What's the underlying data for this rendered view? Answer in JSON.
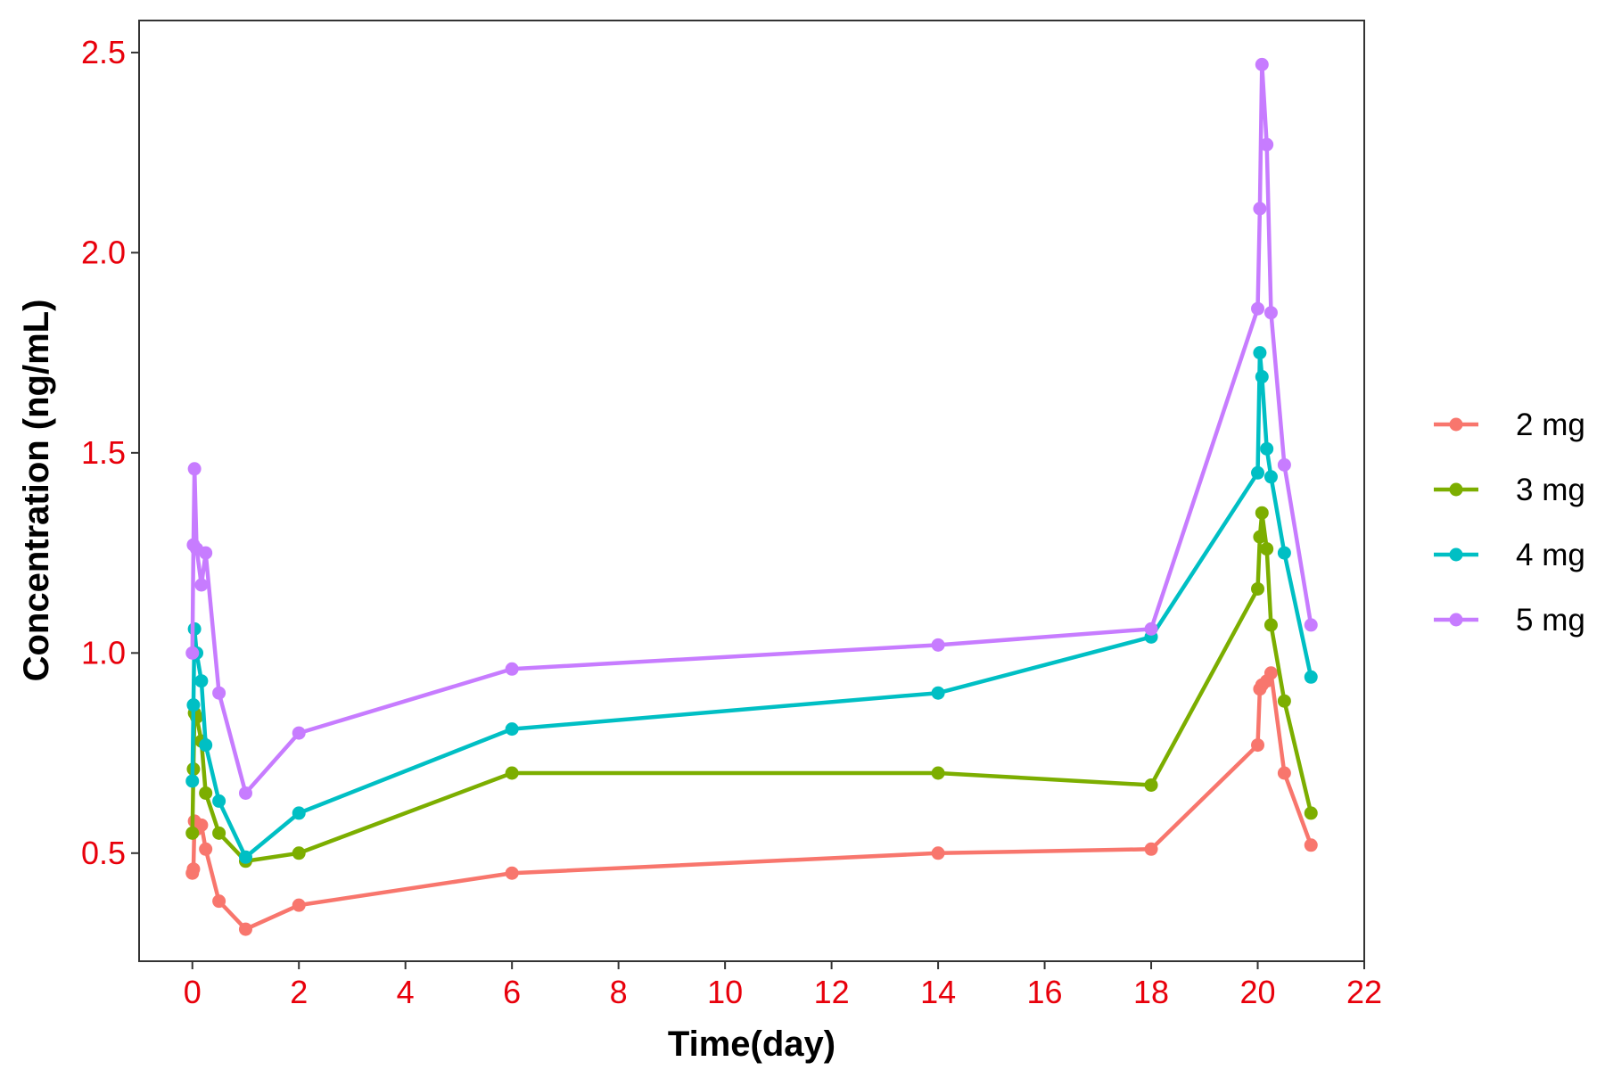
{
  "chart_data": {
    "type": "line",
    "xlabel": "Time(day)",
    "ylabel": "Concentration (ng/mL)",
    "xlim": [
      -1.0,
      22.0
    ],
    "ylim": [
      0.23,
      2.58
    ],
    "xticks": [
      0,
      2,
      4,
      6,
      8,
      10,
      12,
      14,
      16,
      18,
      20,
      22
    ],
    "xtick_labels": [
      "0",
      "2",
      "4",
      "6",
      "8",
      "10",
      "12",
      "14",
      "16",
      "18",
      "20",
      "22"
    ],
    "yticks": [
      0.5,
      1.0,
      1.5,
      2.0,
      2.5
    ],
    "ytick_labels": [
      "0.5",
      "1.0",
      "1.5",
      "2.0",
      "2.5"
    ],
    "tick_label_color": "#e8000b",
    "grid": false,
    "legend_position": "right",
    "series": [
      {
        "name": "2 mg",
        "color": "#f8766d",
        "points": [
          [
            0.0,
            0.45
          ],
          [
            0.02,
            0.46
          ],
          [
            0.04,
            0.58
          ],
          [
            0.08,
            0.56
          ],
          [
            0.17,
            0.57
          ],
          [
            0.25,
            0.51
          ],
          [
            0.5,
            0.38
          ],
          [
            1.0,
            0.31
          ],
          [
            2.0,
            0.37
          ],
          [
            6.0,
            0.45
          ],
          [
            14.0,
            0.5
          ],
          [
            18.0,
            0.51
          ],
          [
            20.0,
            0.77
          ],
          [
            20.04,
            0.91
          ],
          [
            20.08,
            0.92
          ],
          [
            20.17,
            0.93
          ],
          [
            20.25,
            0.95
          ],
          [
            20.5,
            0.7
          ],
          [
            21.0,
            0.52
          ]
        ]
      },
      {
        "name": "3 mg",
        "color": "#7cae00",
        "points": [
          [
            0.0,
            0.55
          ],
          [
            0.02,
            0.71
          ],
          [
            0.04,
            0.85
          ],
          [
            0.08,
            0.84
          ],
          [
            0.17,
            0.78
          ],
          [
            0.25,
            0.65
          ],
          [
            0.5,
            0.55
          ],
          [
            1.0,
            0.48
          ],
          [
            2.0,
            0.5
          ],
          [
            6.0,
            0.7
          ],
          [
            14.0,
            0.7
          ],
          [
            18.0,
            0.67
          ],
          [
            20.0,
            1.16
          ],
          [
            20.04,
            1.29
          ],
          [
            20.08,
            1.35
          ],
          [
            20.17,
            1.26
          ],
          [
            20.25,
            1.07
          ],
          [
            20.5,
            0.88
          ],
          [
            21.0,
            0.6
          ]
        ]
      },
      {
        "name": "4 mg",
        "color": "#00bfc4",
        "points": [
          [
            0.0,
            0.68
          ],
          [
            0.02,
            0.87
          ],
          [
            0.04,
            1.06
          ],
          [
            0.08,
            1.0
          ],
          [
            0.17,
            0.93
          ],
          [
            0.25,
            0.77
          ],
          [
            0.5,
            0.63
          ],
          [
            1.0,
            0.49
          ],
          [
            2.0,
            0.6
          ],
          [
            6.0,
            0.81
          ],
          [
            14.0,
            0.9
          ],
          [
            18.0,
            1.04
          ],
          [
            20.0,
            1.45
          ],
          [
            20.04,
            1.75
          ],
          [
            20.08,
            1.69
          ],
          [
            20.17,
            1.51
          ],
          [
            20.25,
            1.44
          ],
          [
            20.5,
            1.25
          ],
          [
            21.0,
            0.94
          ]
        ]
      },
      {
        "name": "5 mg",
        "color": "#c77cff",
        "points": [
          [
            0.0,
            1.0
          ],
          [
            0.02,
            1.27
          ],
          [
            0.04,
            1.46
          ],
          [
            0.08,
            1.26
          ],
          [
            0.17,
            1.17
          ],
          [
            0.25,
            1.25
          ],
          [
            0.5,
            0.9
          ],
          [
            1.0,
            0.65
          ],
          [
            2.0,
            0.8
          ],
          [
            6.0,
            0.96
          ],
          [
            14.0,
            1.02
          ],
          [
            18.0,
            1.06
          ],
          [
            20.0,
            1.86
          ],
          [
            20.04,
            2.11
          ],
          [
            20.08,
            2.47
          ],
          [
            20.17,
            2.27
          ],
          [
            20.25,
            1.85
          ],
          [
            20.5,
            1.47
          ],
          [
            21.0,
            1.07
          ]
        ]
      }
    ]
  }
}
